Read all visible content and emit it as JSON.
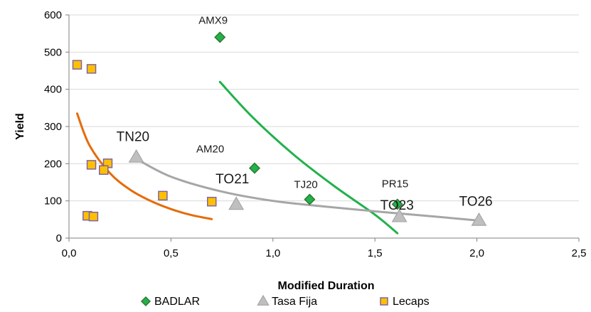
{
  "chart_data": {
    "type": "scatter",
    "title": "",
    "xlabel": "Modified Duration",
    "ylabel": "Yield",
    "xlim": [
      0,
      2.5
    ],
    "ylim": [
      0,
      600
    ],
    "x_ticks": [
      "0,0",
      "0,5",
      "1,0",
      "1,5",
      "2,0",
      "2,5"
    ],
    "y_ticks": [
      "0",
      "100",
      "200",
      "300",
      "400",
      "500",
      "600"
    ],
    "grid": "horizontal",
    "legend_position": "bottom",
    "series": [
      {
        "name": "BADLAR",
        "marker": "diamond",
        "color": "#22b14c",
        "edge_color": "#2f7a2f",
        "points": [
          {
            "x": 0.74,
            "y": 540,
            "label": "AMX9"
          },
          {
            "x": 0.91,
            "y": 188,
            "label": "AM20"
          },
          {
            "x": 1.18,
            "y": 104,
            "label": "TJ20"
          },
          {
            "x": 1.61,
            "y": 91,
            "label": "PR15"
          }
        ]
      },
      {
        "name": "Tasa Fija",
        "marker": "triangle",
        "color": "#bfbfbf",
        "edge_color": "#a6a6a6",
        "points": [
          {
            "x": 0.33,
            "y": 217,
            "label": "TN20"
          },
          {
            "x": 0.82,
            "y": 90,
            "label": "TO21"
          },
          {
            "x": 1.62,
            "y": 57,
            "label": "TO23"
          },
          {
            "x": 2.01,
            "y": 47,
            "label": "TO26"
          }
        ]
      },
      {
        "name": "Lecaps",
        "marker": "square",
        "color": "#ffc000",
        "edge_color": "#8064a2",
        "points": [
          {
            "x": 0.04,
            "y": 466
          },
          {
            "x": 0.11,
            "y": 455
          },
          {
            "x": 0.11,
            "y": 197
          },
          {
            "x": 0.19,
            "y": 201
          },
          {
            "x": 0.17,
            "y": 183
          },
          {
            "x": 0.09,
            "y": 60
          },
          {
            "x": 0.12,
            "y": 58
          },
          {
            "x": 0.46,
            "y": 114
          },
          {
            "x": 0.7,
            "y": 98
          }
        ]
      }
    ],
    "trendlines": [
      {
        "series": "BADLAR",
        "color": "#22b14c",
        "x_range": [
          0.74,
          1.61
        ],
        "points": [
          [
            0.74,
            420
          ],
          [
            0.9,
            325
          ],
          [
            1.1,
            225
          ],
          [
            1.3,
            140
          ],
          [
            1.5,
            63
          ],
          [
            1.61,
            13
          ]
        ]
      },
      {
        "series": "Tasa Fija",
        "color": "#a6a6a6",
        "x_range": [
          0.33,
          2.01
        ],
        "points": [
          [
            0.33,
            213
          ],
          [
            0.5,
            165
          ],
          [
            0.75,
            125
          ],
          [
            1.0,
            100
          ],
          [
            1.25,
            85
          ],
          [
            1.5,
            72
          ],
          [
            1.75,
            60
          ],
          [
            2.01,
            47
          ]
        ]
      },
      {
        "series": "Lecaps",
        "color": "#e46c0a",
        "x_range": [
          0.04,
          0.7
        ],
        "points": [
          [
            0.04,
            335
          ],
          [
            0.1,
            250
          ],
          [
            0.2,
            175
          ],
          [
            0.3,
            130
          ],
          [
            0.4,
            100
          ],
          [
            0.5,
            78
          ],
          [
            0.6,
            62
          ],
          [
            0.7,
            51
          ]
        ]
      }
    ],
    "annotation_styles": {
      "AMX9": "small",
      "AM20": "small",
      "TJ20": "small",
      "PR15": "small",
      "TN20": "large",
      "TO21": "large",
      "TO23": "large",
      "TO26": "large"
    }
  }
}
